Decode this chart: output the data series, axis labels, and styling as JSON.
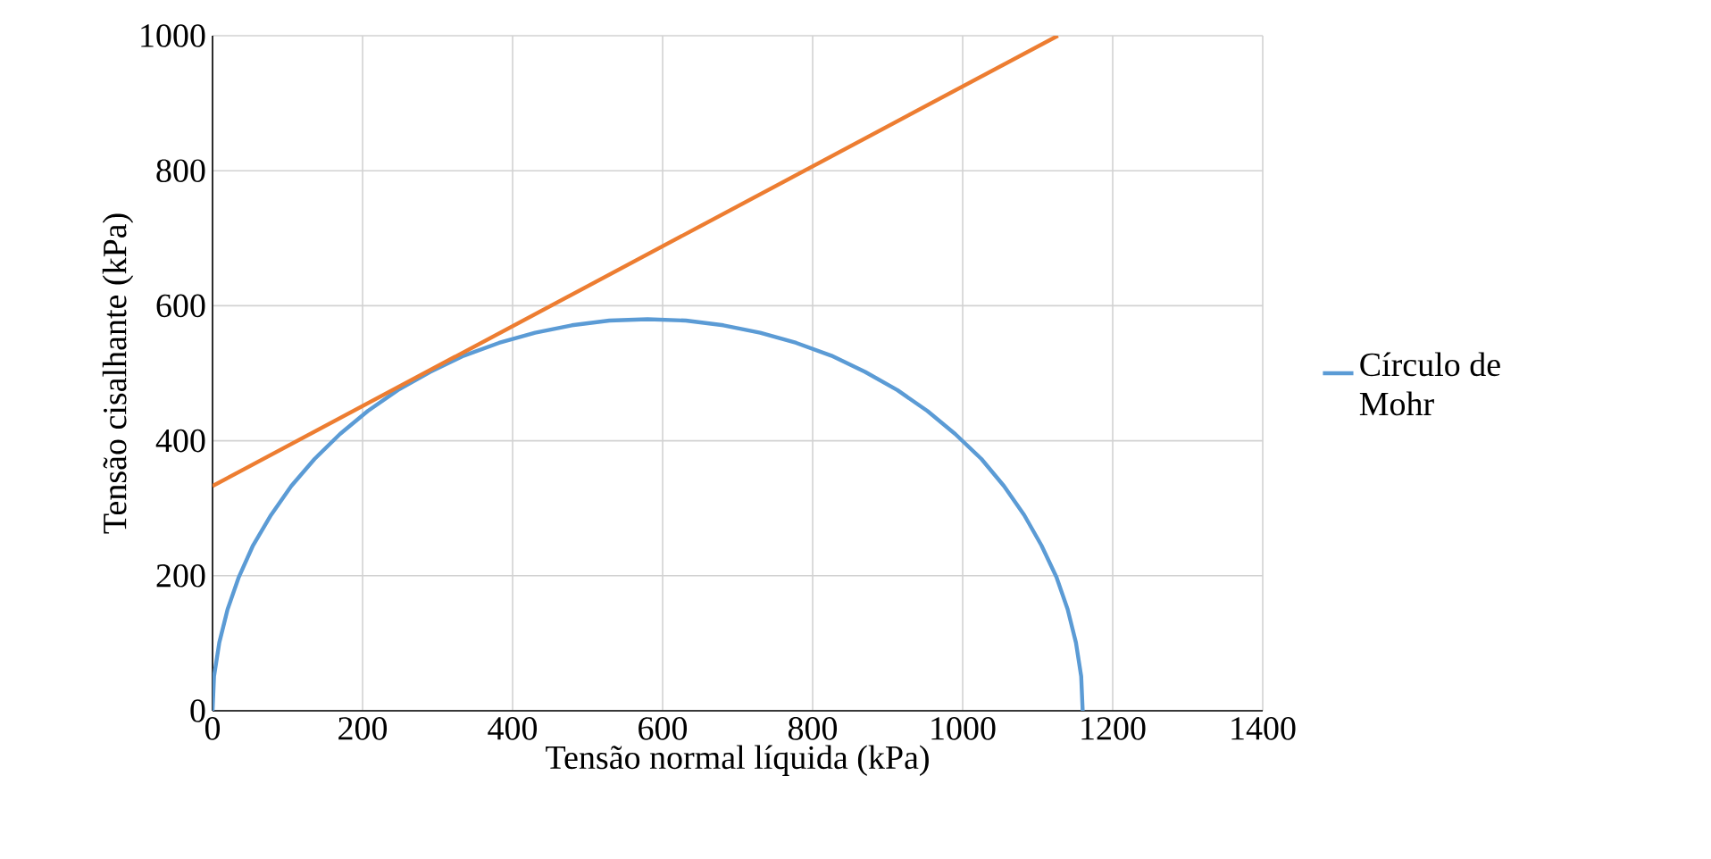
{
  "chart_data": {
    "type": "line",
    "xlabel": "Tensão normal líquida (kPa)",
    "ylabel": "Tensão cisalhante (kPa)",
    "xlim": [
      0,
      1400
    ],
    "ylim": [
      0,
      1000
    ],
    "xticks": [
      0,
      200,
      400,
      600,
      800,
      1000,
      1200,
      1400
    ],
    "yticks": [
      0,
      200,
      400,
      600,
      800,
      1000
    ],
    "grid": true,
    "legend": "right",
    "marker": "none",
    "series": [
      {
        "name": "Círculo de Mohr",
        "color": "#5b9bd5",
        "x": [
          0,
          2,
          9,
          20,
          35,
          54,
          78,
          105,
          136,
          170,
          207,
          247,
          290,
          335,
          382,
          430,
          479,
          529,
          580,
          631,
          681,
          730,
          778,
          825,
          870,
          913,
          953,
          990,
          1025,
          1055,
          1082,
          1105,
          1125,
          1140,
          1151,
          1158,
          1160
        ],
        "values": [
          0,
          51,
          101,
          150,
          198,
          245,
          290,
          333,
          373,
          410,
          444,
          475,
          502,
          526,
          545,
          560,
          571,
          578,
          580,
          578,
          571,
          560,
          545,
          526,
          502,
          475,
          444,
          410,
          373,
          333,
          290,
          245,
          198,
          150,
          101,
          51,
          0
        ]
      },
      {
        "color": "#ed7d31",
        "x": [
          0,
          1127
        ],
        "values": [
          333,
          1000
        ]
      }
    ]
  }
}
